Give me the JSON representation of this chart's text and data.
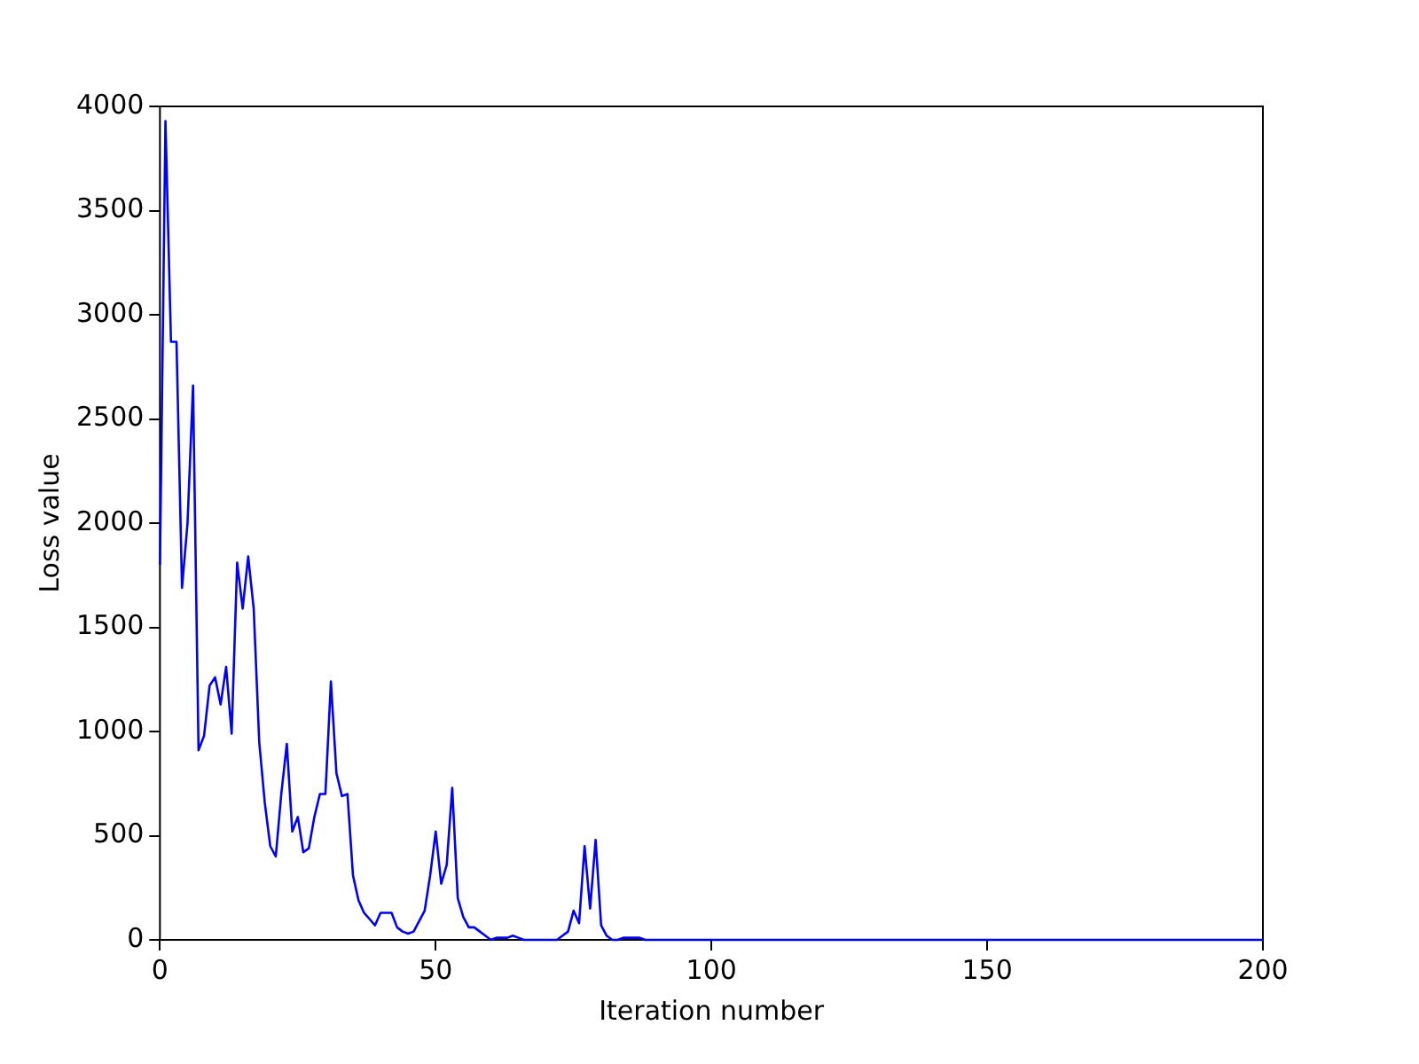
{
  "chart_data": {
    "type": "line",
    "xlabel": "Iteration number",
    "ylabel": "Loss value",
    "x": [
      0,
      1,
      2,
      3,
      4,
      5,
      6,
      7,
      8,
      9,
      10,
      11,
      12,
      13,
      14,
      15,
      16,
      17,
      18,
      19,
      20,
      21,
      22,
      23,
      24,
      25,
      26,
      27,
      28,
      29,
      30,
      31,
      32,
      33,
      34,
      35,
      36,
      37,
      38,
      39,
      40,
      41,
      42,
      43,
      44,
      45,
      46,
      47,
      48,
      49,
      50,
      51,
      52,
      53,
      54,
      55,
      56,
      57,
      58,
      59,
      60,
      61,
      62,
      63,
      64,
      65,
      66,
      67,
      68,
      69,
      70,
      71,
      72,
      73,
      74,
      75,
      76,
      77,
      78,
      79,
      80,
      81,
      82,
      83,
      84,
      85,
      86,
      87,
      88,
      89,
      90,
      92,
      95,
      100,
      120,
      150,
      200
    ],
    "series": [
      {
        "color": "#0000ff",
        "values": [
          1800,
          3930,
          2870,
          2870,
          1690,
          2000,
          2660,
          910,
          980,
          1220,
          1260,
          1130,
          1310,
          990,
          1810,
          1590,
          1840,
          1590,
          950,
          660,
          450,
          400,
          700,
          940,
          520,
          590,
          420,
          440,
          590,
          700,
          700,
          1240,
          800,
          690,
          700,
          310,
          190,
          130,
          100,
          70,
          130,
          130,
          130,
          60,
          40,
          30,
          40,
          90,
          140,
          310,
          520,
          270,
          360,
          730,
          200,
          110,
          60,
          60,
          40,
          20,
          0,
          10,
          10,
          10,
          20,
          10,
          0,
          0,
          0,
          0,
          0,
          0,
          0,
          20,
          40,
          140,
          80,
          450,
          150,
          480,
          70,
          20,
          0,
          0,
          10,
          10,
          10,
          10,
          0,
          0,
          0,
          0,
          0,
          0,
          0,
          0,
          0
        ]
      }
    ],
    "xlim": [
      0,
      200
    ],
    "xticks": [
      0,
      50,
      100,
      150,
      200
    ],
    "ylim": [
      0,
      4000
    ],
    "yticks": [
      0,
      500,
      1000,
      1500,
      2000,
      2500,
      3000,
      3500,
      4000
    ],
    "grid": false,
    "legend": false,
    "marker": "none",
    "line_style": "solid"
  }
}
